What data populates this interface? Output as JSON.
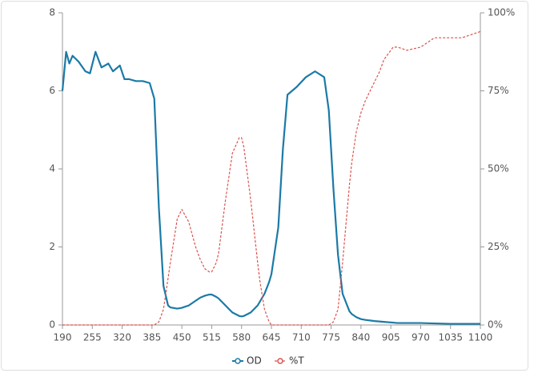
{
  "chart_data": {
    "type": "line",
    "x": [
      190,
      198,
      205,
      212,
      225,
      240,
      250,
      262,
      275,
      290,
      300,
      315,
      325,
      335,
      350,
      365,
      380,
      390,
      400,
      410,
      420,
      425,
      440,
      450,
      465,
      480,
      490,
      500,
      510,
      515,
      525,
      530,
      545,
      555,
      560,
      575,
      580,
      585,
      600,
      615,
      620,
      630,
      640,
      645,
      660,
      670,
      680,
      700,
      720,
      740,
      760,
      770,
      780,
      790,
      800,
      815,
      820,
      830,
      840,
      850,
      870,
      880,
      890,
      910,
      920,
      940,
      970,
      1000,
      1035,
      1060,
      1100
    ],
    "series": [
      {
        "name": "OD",
        "color": "#1b7aa6",
        "values": [
          6.0,
          7.0,
          6.7,
          6.9,
          6.75,
          6.5,
          6.45,
          7.0,
          6.6,
          6.7,
          6.5,
          6.65,
          6.3,
          6.3,
          6.25,
          6.25,
          6.2,
          5.8,
          3.0,
          1.0,
          0.5,
          0.45,
          0.42,
          0.44,
          0.5,
          0.62,
          0.7,
          0.75,
          0.78,
          0.78,
          0.72,
          0.68,
          0.5,
          0.38,
          0.32,
          0.23,
          0.22,
          0.23,
          0.32,
          0.5,
          0.6,
          0.8,
          1.1,
          1.3,
          2.5,
          4.5,
          5.9,
          6.1,
          6.35,
          6.5,
          6.35,
          5.5,
          3.5,
          1.8,
          0.8,
          0.35,
          0.28,
          0.2,
          0.15,
          0.13,
          0.1,
          0.09,
          0.08,
          0.06,
          0.05,
          0.05,
          0.05,
          0.04,
          0.03,
          0.03,
          0.03
        ]
      },
      {
        "name": "%T",
        "color": "#d9534f",
        "axis": "y2",
        "dashed": true,
        "values": [
          0,
          0,
          0,
          0,
          0,
          0,
          0,
          0,
          0,
          0,
          0,
          0,
          0,
          0,
          0,
          0,
          0,
          0,
          1,
          5,
          15,
          20,
          34,
          37,
          33,
          25,
          21,
          18,
          17,
          17,
          20,
          23,
          40,
          50,
          55,
          60,
          60,
          57,
          40,
          20,
          14,
          5,
          1,
          0,
          0,
          0,
          0,
          0,
          0,
          0,
          0,
          0,
          1,
          5,
          20,
          45,
          52,
          62,
          68,
          72,
          78,
          81,
          85,
          89,
          89,
          88,
          89,
          92,
          92,
          92,
          94
        ]
      }
    ],
    "xlim": [
      190,
      1100
    ],
    "xticks": [
      190,
      255,
      320,
      385,
      450,
      515,
      580,
      645,
      710,
      775,
      840,
      905,
      970,
      1035,
      1100
    ],
    "ylim": [
      0,
      8
    ],
    "yticks": [
      0,
      2,
      4,
      6,
      8
    ],
    "y2lim": [
      0,
      100
    ],
    "y2ticks": [
      {
        "value": 0,
        "label": "0%"
      },
      {
        "value": 25,
        "label": "25%"
      },
      {
        "value": 50,
        "label": "50%"
      },
      {
        "value": 75,
        "label": "75%"
      },
      {
        "value": 100,
        "label": "100%"
      }
    ],
    "legend": "bottom"
  }
}
